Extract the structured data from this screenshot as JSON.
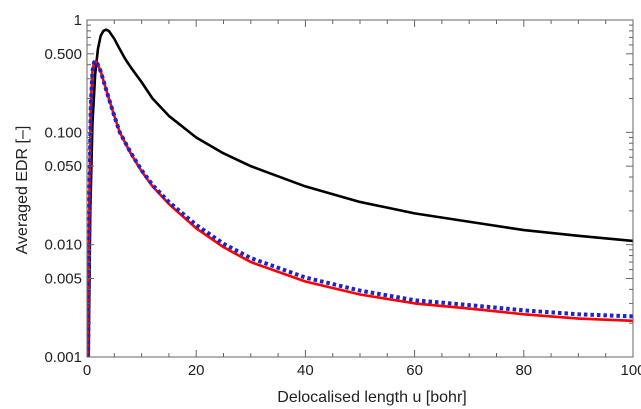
{
  "chart_data": {
    "type": "line",
    "title": "",
    "xlabel": "Delocalised length u [bohr]",
    "ylabel": "Averaged EDR [–]",
    "xlim": [
      0,
      100
    ],
    "ylim": [
      0.001,
      1
    ],
    "y_scale": "log",
    "grid": false,
    "legend": "none",
    "x_ticks": [
      {
        "value": 0,
        "label": "0"
      },
      {
        "value": 20,
        "label": "20"
      },
      {
        "value": 40,
        "label": "40"
      },
      {
        "value": 60,
        "label": "60"
      },
      {
        "value": 80,
        "label": "80"
      },
      {
        "value": 100,
        "label": "100"
      }
    ],
    "y_ticks": [
      {
        "value": 0.001,
        "label": "0.001"
      },
      {
        "value": 0.005,
        "label": "0.005"
      },
      {
        "value": 0.01,
        "label": "0.010"
      },
      {
        "value": 0.05,
        "label": "0.050"
      },
      {
        "value": 0.1,
        "label": "0.100"
      },
      {
        "value": 0.5,
        "label": "0.500"
      },
      {
        "value": 1,
        "label": "1"
      }
    ],
    "series": [
      {
        "color": "#000000",
        "style": "solid",
        "x": [
          0.3,
          0.6,
          1,
          1.5,
          2,
          2.5,
          3,
          3.5,
          4,
          5,
          6,
          7,
          8,
          10,
          12,
          15,
          20,
          25,
          30,
          40,
          50,
          60,
          70,
          80,
          90,
          100
        ],
        "y": [
          0.001,
          0.02,
          0.12,
          0.33,
          0.55,
          0.72,
          0.8,
          0.82,
          0.8,
          0.68,
          0.55,
          0.45,
          0.38,
          0.28,
          0.2,
          0.14,
          0.09,
          0.065,
          0.05,
          0.033,
          0.024,
          0.019,
          0.016,
          0.0135,
          0.012,
          0.0108
        ]
      },
      {
        "color": "#ff0000",
        "style": "solid",
        "x": [
          0.2,
          0.4,
          0.7,
          1,
          1.3,
          1.6,
          2,
          2.5,
          3,
          4,
          5,
          6,
          8,
          10,
          12,
          15,
          20,
          25,
          30,
          40,
          50,
          60,
          70,
          80,
          90,
          100
        ],
        "y": [
          0.001,
          0.02,
          0.18,
          0.35,
          0.42,
          0.43,
          0.4,
          0.35,
          0.29,
          0.2,
          0.14,
          0.1,
          0.065,
          0.045,
          0.033,
          0.023,
          0.014,
          0.0095,
          0.007,
          0.0047,
          0.0036,
          0.003,
          0.0027,
          0.0024,
          0.0022,
          0.0021
        ]
      },
      {
        "color": "#2222cc",
        "style": "dotted",
        "x": [
          0.2,
          0.4,
          0.7,
          1,
          1.3,
          1.6,
          2,
          2.5,
          3,
          4,
          5,
          6,
          8,
          10,
          12,
          15,
          20,
          25,
          30,
          40,
          50,
          60,
          70,
          80,
          90,
          100
        ],
        "y": [
          0.001,
          0.02,
          0.18,
          0.35,
          0.42,
          0.43,
          0.4,
          0.35,
          0.29,
          0.2,
          0.14,
          0.1,
          0.066,
          0.046,
          0.034,
          0.024,
          0.015,
          0.0102,
          0.0076,
          0.0051,
          0.0039,
          0.0032,
          0.0029,
          0.0026,
          0.0024,
          0.0023
        ]
      }
    ]
  }
}
